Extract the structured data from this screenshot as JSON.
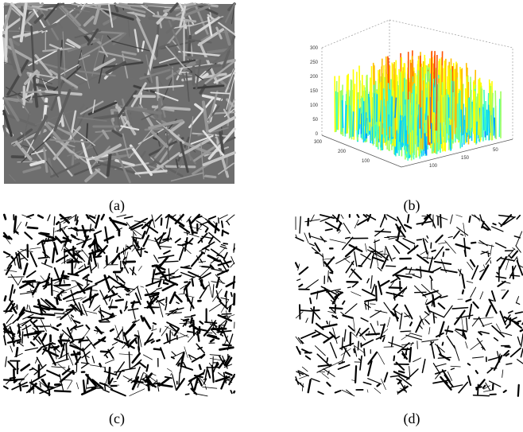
{
  "panels": [
    {
      "caption": "(a)"
    },
    {
      "caption": "(b)",
      "z_ticks": [
        "300",
        "250",
        "200",
        "150",
        "100",
        "50",
        "0"
      ],
      "left_ticks": [
        "300",
        "200",
        "100"
      ],
      "right_ticks": [
        "100",
        "150",
        "50"
      ]
    },
    {
      "caption": "(c)"
    },
    {
      "caption": "(d)"
    }
  ]
}
